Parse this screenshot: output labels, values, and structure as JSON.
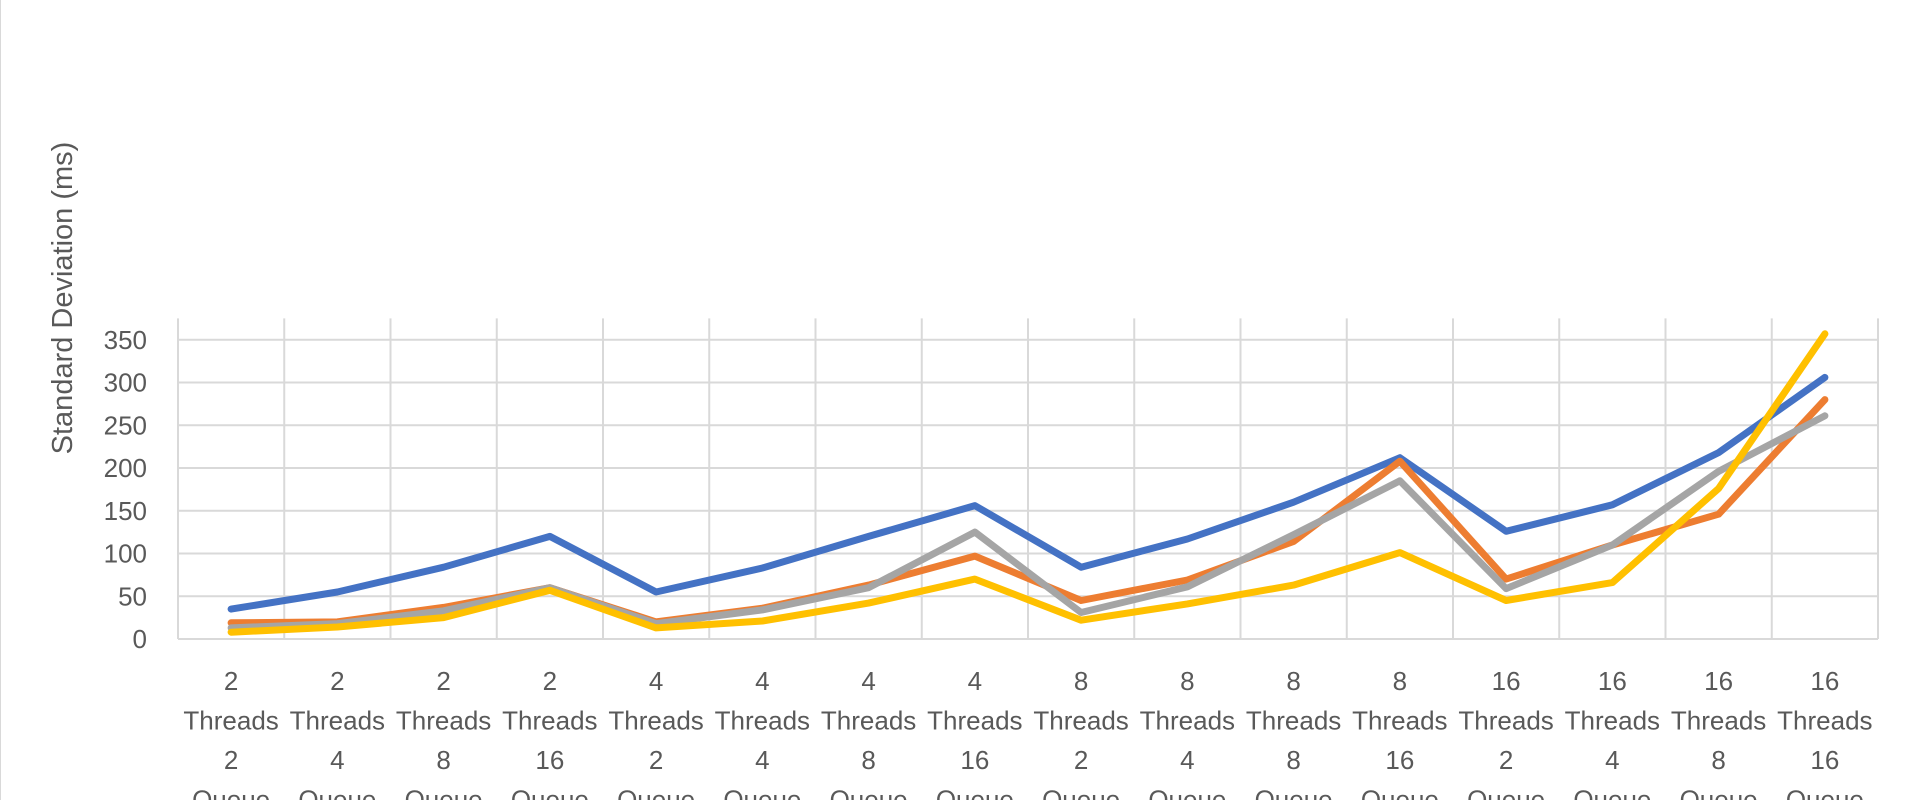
{
  "chart_data": {
    "type": "line",
    "title": "",
    "xlabel": "",
    "ylabel": "Standard Deviation (ms)",
    "ylim": [
      0,
      375
    ],
    "yticks": [
      0,
      50,
      100,
      150,
      200,
      250,
      300,
      350
    ],
    "grid": true,
    "categories": [
      [
        "2",
        "Threads",
        "2",
        "Queue"
      ],
      [
        "2",
        "Threads",
        "4",
        "Queue"
      ],
      [
        "2",
        "Threads",
        "8",
        "Queue"
      ],
      [
        "2",
        "Threads",
        "16",
        "Queue"
      ],
      [
        "4",
        "Threads",
        "2",
        "Queue"
      ],
      [
        "4",
        "Threads",
        "4",
        "Queue"
      ],
      [
        "4",
        "Threads",
        "8",
        "Queue"
      ],
      [
        "4",
        "Threads",
        "16",
        "Queue"
      ],
      [
        "8",
        "Threads",
        "2",
        "Queue"
      ],
      [
        "8",
        "Threads",
        "4",
        "Queue"
      ],
      [
        "8",
        "Threads",
        "8",
        "Queue"
      ],
      [
        "8",
        "Threads",
        "16",
        "Queue"
      ],
      [
        "16",
        "Threads",
        "2",
        "Queue"
      ],
      [
        "16",
        "Threads",
        "4",
        "Queue"
      ],
      [
        "16",
        "Threads",
        "8",
        "Queue"
      ],
      [
        "16",
        "Threads",
        "16",
        "Queue"
      ]
    ],
    "series": [
      {
        "color": "#4472C4",
        "values": [
          35,
          55,
          84,
          120,
          55,
          83,
          120,
          156,
          84,
          117,
          160,
          212,
          126,
          157,
          218,
          306
        ]
      },
      {
        "color": "#ED7D31",
        "values": [
          19,
          20,
          37,
          60,
          20,
          36,
          63,
          97,
          45,
          69,
          114,
          208,
          70,
          110,
          146,
          280
        ]
      },
      {
        "color": "#A5A5A5",
        "values": [
          13,
          18,
          33,
          60,
          18,
          34,
          60,
          125,
          31,
          61,
          122,
          185,
          59,
          110,
          196,
          261
        ]
      },
      {
        "color": "#FFC000",
        "values": [
          8,
          14,
          25,
          57,
          13,
          21,
          42,
          70,
          22,
          41,
          63,
          101,
          45,
          66,
          176,
          357
        ]
      }
    ]
  }
}
